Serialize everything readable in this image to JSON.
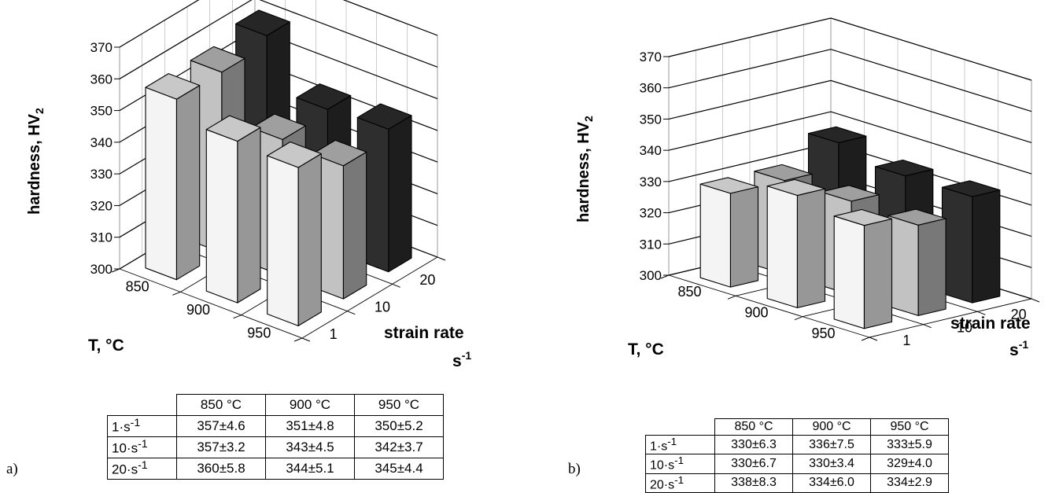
{
  "chart_data": [
    {
      "panel": "a)",
      "type": "bar3d",
      "ylabel_main": "hardness, HV",
      "ylabel_sub": "2",
      "xlabel": "T, °C",
      "zlabel_line1": "strain rate",
      "zlabel_line2": "s",
      "zlabel_sup": "-1",
      "ylim": [
        300,
        370
      ],
      "yticks": [
        "300",
        "310",
        "320",
        "330",
        "340",
        "350",
        "360",
        "370"
      ],
      "temperatures": [
        "850",
        "900",
        "950"
      ],
      "strain_rates": [
        "1",
        "10",
        "20"
      ],
      "colors": [
        "#f4f4f4",
        "#c2c2c2",
        "#2e2e2e"
      ],
      "values": [
        [
          357,
          351,
          350
        ],
        [
          357,
          343,
          342
        ],
        [
          360,
          344,
          345
        ]
      ],
      "table": {
        "columns": [
          "850 °C",
          "900 °C",
          "950 °C"
        ],
        "rows": [
          {
            "label": "1·s",
            "sup": "-1",
            "cells": [
              "357±4.6",
              "351±4.8",
              "350±5.2"
            ]
          },
          {
            "label": "10·s",
            "sup": "-1",
            "cells": [
              "357±3.2",
              "343±4.5",
              "342±3.7"
            ]
          },
          {
            "label": "20·s",
            "sup": "-1",
            "cells": [
              "360±5.8",
              "344±5.1",
              "345±4.4"
            ]
          }
        ]
      }
    },
    {
      "panel": "b)",
      "type": "bar3d",
      "ylabel_main": "hardness, HV",
      "ylabel_sub": "2",
      "xlabel": "T, °C",
      "zlabel_line1": "strain rate",
      "zlabel_line2": "s",
      "zlabel_sup": "-1",
      "ylim": [
        300,
        370
      ],
      "yticks": [
        "300",
        "310",
        "320",
        "330",
        "340",
        "350",
        "360",
        "370"
      ],
      "temperatures": [
        "850",
        "900",
        "950"
      ],
      "strain_rates": [
        "1",
        "10",
        "20"
      ],
      "colors": [
        "#f4f4f4",
        "#c2c2c2",
        "#2e2e2e"
      ],
      "values": [
        [
          330,
          336,
          333
        ],
        [
          330,
          330,
          329
        ],
        [
          338,
          334,
          334
        ]
      ],
      "table": {
        "columns": [
          "850 °C",
          "900 °C",
          "950 °C"
        ],
        "rows": [
          {
            "label": "1·s",
            "sup": "-1",
            "cells": [
              "330±6.3",
              "336±7.5",
              "333±5.9"
            ]
          },
          {
            "label": "10·s",
            "sup": "-1",
            "cells": [
              "330±6.7",
              "330±3.4",
              "329±4.0"
            ]
          },
          {
            "label": "20·s",
            "sup": "-1",
            "cells": [
              "338±8.3",
              "334±6.0",
              "334±2.9"
            ]
          }
        ]
      }
    }
  ]
}
